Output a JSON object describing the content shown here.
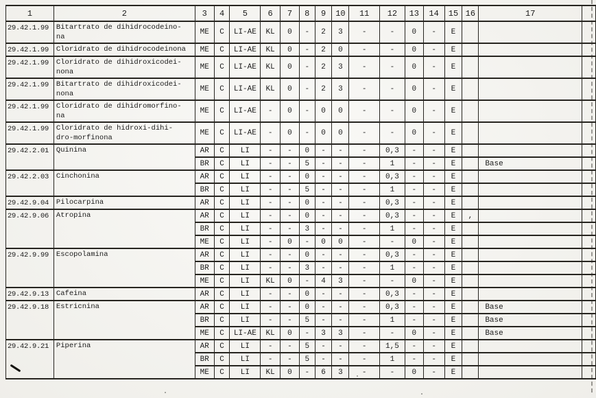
{
  "page": {
    "paper_color": "#f4f3ee",
    "ink_color": "#1b1b1b"
  },
  "table": {
    "column_headers": [
      "1",
      "2",
      "3",
      "4",
      "5",
      "6",
      "7",
      "8",
      "9",
      "10",
      "11",
      "12",
      "13",
      "14",
      "15",
      "16",
      "17",
      ""
    ],
    "groups": [
      {
        "code": "29.42.1.99",
        "name": "Bitartrato de dihidrocodeino-\nna",
        "rows": [
          [
            "ME",
            "C",
            "LI-AE",
            "KL",
            "0",
            "-",
            "2",
            "3",
            "-",
            "-",
            "0",
            "-",
            "E",
            "",
            ""
          ]
        ]
      },
      {
        "code": "29.42.1.99",
        "name": "Cloridrato de dihidrocodeinona",
        "rows": [
          [
            "ME",
            "C",
            "LI-AE",
            "KL",
            "0",
            "-",
            "2",
            "0",
            "-",
            "-",
            "0",
            "-",
            "E",
            "",
            ""
          ]
        ]
      },
      {
        "code": "29.42.1.99",
        "name": "Cloridrato de dihidroxicodei-\nnona",
        "rows": [
          [
            "ME",
            "C",
            "LI-AE",
            "KL",
            "0",
            "-",
            "2",
            "3",
            "-",
            "-",
            "0",
            "-",
            "E",
            "",
            ""
          ]
        ]
      },
      {
        "code": "29.42.1.99",
        "name": "Bitartrato de dihidroxicodei-\nnona",
        "rows": [
          [
            "ME",
            "C",
            "LI-AE",
            "KL",
            "0",
            "-",
            "2",
            "3",
            "-",
            "-",
            "0",
            "-",
            "E",
            "",
            ""
          ]
        ]
      },
      {
        "code": "29.42.1.99",
        "name": "Cloridrato de dihidromorfino-\nna",
        "rows": [
          [
            "ME",
            "C",
            "LI-AE",
            "-",
            "0",
            "-",
            "0",
            "0",
            "-",
            "-",
            "0",
            "-",
            "E",
            "",
            ""
          ]
        ]
      },
      {
        "code": "29.42.1.99",
        "name": "Cloridrato de hidroxi-dihi-\ndro-morfinona",
        "rows": [
          [
            "ME",
            "C",
            "LI-AE",
            "-",
            "0",
            "-",
            "0",
            "0",
            "-",
            "-",
            "0",
            "-",
            "E",
            "",
            ""
          ]
        ]
      },
      {
        "code": "29.42.2.01",
        "name": "Quinina",
        "rows": [
          [
            "AR",
            "C",
            "LI",
            "-",
            "-",
            "0",
            "-",
            "-",
            "-",
            "0,3",
            "-",
            "-",
            "E",
            "",
            ""
          ],
          [
            "BR",
            "C",
            "LI",
            "-",
            "-",
            "5",
            "-",
            "-",
            "-",
            "1",
            "-",
            "-",
            "E",
            "",
            "Base"
          ]
        ]
      },
      {
        "code": "29.42.2.03",
        "name": "Cinchonina",
        "rows": [
          [
            "AR",
            "C",
            "LI",
            "-",
            "-",
            "0",
            "-",
            "-",
            "-",
            "0,3",
            "-",
            "-",
            "E",
            "",
            ""
          ],
          [
            "BR",
            "C",
            "LI",
            "-",
            "-",
            "5",
            "-",
            "-",
            "-",
            "1",
            "-",
            "-",
            "E",
            "",
            ""
          ]
        ]
      },
      {
        "code": "29.42.9.04",
        "name": "Pilocarpina",
        "rows": [
          [
            "AR",
            "C",
            "LI",
            "-",
            "-",
            "0",
            "-",
            "-",
            "-",
            "0,3",
            "-",
            "-",
            "E",
            "",
            ""
          ]
        ]
      },
      {
        "code": "29.42.9.06",
        "name": "Atropina",
        "rows": [
          [
            "AR",
            "C",
            "LI",
            "-",
            "-",
            "0",
            "-",
            "-",
            "-",
            "0,3",
            "-",
            "-",
            "E",
            ",",
            ""
          ],
          [
            "BR",
            "C",
            "LI",
            "-",
            "-",
            "3",
            "-",
            "-",
            "-",
            "1",
            "-",
            "-",
            "E",
            "",
            ""
          ],
          [
            "ME",
            "C",
            "LI",
            "-",
            "0",
            "-",
            "0",
            "0",
            "-",
            "-",
            "0",
            "-",
            "E",
            "",
            ""
          ]
        ]
      },
      {
        "code": "29.42.9.99",
        "name": "Escopolamina",
        "rows": [
          [
            "AR",
            "C",
            "LI",
            "-",
            "-",
            "0",
            "-",
            "-",
            "-",
            "0,3",
            "-",
            "-",
            "E",
            "",
            ""
          ],
          [
            "BR",
            "C",
            "LI",
            "-",
            "-",
            "3",
            "-",
            "-",
            "-",
            "1",
            "-",
            "-",
            "E",
            "",
            ""
          ],
          [
            "ME",
            "C",
            "LI",
            "KL",
            "0",
            "-",
            "4",
            "3",
            "-",
            "-",
            "0",
            "-",
            "E",
            "",
            ""
          ]
        ]
      },
      {
        "code": "29.42.9.13",
        "name": "Cafeina",
        "rows": [
          [
            "AR",
            "C",
            "LI",
            "-",
            "-",
            "0",
            "-",
            "-",
            "-",
            "0,3",
            "-",
            "-",
            "E",
            "",
            ""
          ]
        ]
      },
      {
        "code": "29.42.9.18",
        "name": "Estricnina",
        "rows": [
          [
            "AR",
            "C",
            "LI",
            "-",
            "-",
            "0",
            "-",
            "-",
            "-",
            "0,3",
            "-",
            "-",
            "E",
            "",
            "Base"
          ],
          [
            "BR",
            "C",
            "LI",
            "-",
            "-",
            "5",
            "-",
            "-",
            "-",
            "1",
            "-",
            "-",
            "E",
            "",
            "Base"
          ],
          [
            "ME",
            "C",
            "LI-AE",
            "KL",
            "0",
            "-",
            "3",
            "3",
            "-",
            "-",
            "0",
            "-",
            "E",
            "",
            "Base"
          ]
        ]
      },
      {
        "code": "29.42.9.21",
        "name": "Piperina",
        "pen_mark": true,
        "rows": [
          [
            "AR",
            "C",
            "LI",
            "-",
            "-",
            "5",
            "-",
            "-",
            "-",
            "1,5",
            "-",
            "-",
            "E",
            "",
            ""
          ],
          [
            "BR",
            "C",
            "LI",
            "-",
            "-",
            "5",
            "-",
            "-",
            "-",
            "1",
            "-",
            "-",
            "E",
            "",
            ""
          ],
          [
            "ME",
            "C",
            "LI",
            "KL",
            "0",
            "-",
            "6",
            "3",
            "-",
            "-",
            "0",
            "-",
            "E",
            "",
            ""
          ]
        ]
      }
    ]
  }
}
